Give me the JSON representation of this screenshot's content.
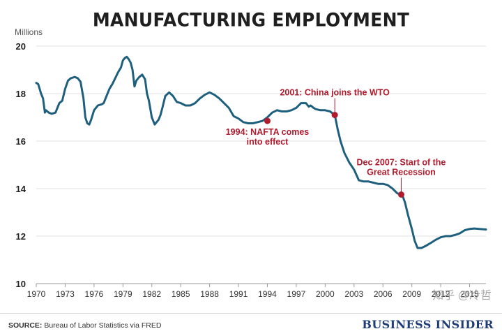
{
  "colors": {
    "line": "#1f5f7e",
    "annotation": "#b01c2e",
    "axis": "#bfbfbf"
  },
  "footer": {
    "source_label": "SOURCE:",
    "source_text": "Bureau of Labor Statistics via FRED",
    "brand": "BUSINESS INSIDER"
  },
  "watermark": "知乎 @冷哲",
  "chart_data": {
    "type": "line",
    "title": "MANUFACTURING EMPLOYMENT",
    "ylabel": "Millions",
    "xlabel": "",
    "xlim": [
      1970,
      2016.7
    ],
    "ylim": [
      10,
      20
    ],
    "yticks": [
      10,
      12,
      14,
      16,
      18,
      20
    ],
    "xticks": [
      1970,
      1973,
      1976,
      1979,
      1982,
      1985,
      1988,
      1991,
      1994,
      1997,
      2000,
      2003,
      2006,
      2009,
      2012,
      2015
    ],
    "series": [
      {
        "name": "Manufacturing employment (millions)",
        "x": [
          1970.0,
          1970.2,
          1970.5,
          1970.7,
          1970.9,
          1971.0,
          1971.3,
          1971.6,
          1972.0,
          1972.4,
          1972.7,
          1973.0,
          1973.3,
          1973.6,
          1974.0,
          1974.3,
          1974.6,
          1974.9,
          1975.1,
          1975.3,
          1975.5,
          1975.7,
          1976.0,
          1976.4,
          1976.8,
          1977.0,
          1977.3,
          1977.6,
          1977.9,
          1978.2,
          1978.5,
          1978.8,
          1979.0,
          1979.2,
          1979.4,
          1979.6,
          1979.8,
          1980.0,
          1980.2,
          1980.4,
          1980.7,
          1981.0,
          1981.3,
          1981.5,
          1981.7,
          1982.0,
          1982.3,
          1982.7,
          1982.9,
          1983.1,
          1983.4,
          1983.8,
          1984.2,
          1984.6,
          1985.0,
          1985.5,
          1986.0,
          1986.5,
          1987.0,
          1987.5,
          1988.0,
          1988.5,
          1989.0,
          1989.5,
          1990.0,
          1990.5,
          1991.0,
          1991.5,
          1992.0,
          1992.5,
          1993.0,
          1993.5,
          1994.0,
          1994.5,
          1995.0,
          1995.5,
          1996.0,
          1996.5,
          1997.0,
          1997.5,
          1998.0,
          1998.3,
          1998.5,
          1998.8,
          1999.0,
          1999.5,
          2000.0,
          2000.5,
          2001.0,
          2001.3,
          2001.6,
          2002.0,
          2002.5,
          2003.0,
          2003.5,
          2004.0,
          2004.5,
          2005.0,
          2005.5,
          2006.0,
          2006.5,
          2007.0,
          2007.5,
          2008.0,
          2008.3,
          2008.6,
          2009.0,
          2009.3,
          2009.6,
          2010.0,
          2010.5,
          2011.0,
          2011.5,
          2012.0,
          2012.5,
          2013.0,
          2013.5,
          2014.0,
          2014.5,
          2015.0,
          2015.5,
          2016.0,
          2016.7
        ],
        "values": [
          18.45,
          18.4,
          18.0,
          17.8,
          17.2,
          17.3,
          17.2,
          17.15,
          17.2,
          17.6,
          17.7,
          18.2,
          18.55,
          18.65,
          18.7,
          18.65,
          18.5,
          17.8,
          17.0,
          16.75,
          16.7,
          16.9,
          17.3,
          17.5,
          17.55,
          17.6,
          17.9,
          18.2,
          18.4,
          18.65,
          18.9,
          19.1,
          19.4,
          19.5,
          19.55,
          19.45,
          19.3,
          19.0,
          18.3,
          18.55,
          18.7,
          18.8,
          18.6,
          18.0,
          17.7,
          17.0,
          16.7,
          16.9,
          17.1,
          17.4,
          17.9,
          18.05,
          17.9,
          17.65,
          17.6,
          17.5,
          17.5,
          17.6,
          17.8,
          17.95,
          18.05,
          17.95,
          17.8,
          17.6,
          17.4,
          17.05,
          16.95,
          16.8,
          16.75,
          16.75,
          16.8,
          16.85,
          17.0,
          17.2,
          17.3,
          17.25,
          17.25,
          17.3,
          17.4,
          17.6,
          17.6,
          17.45,
          17.5,
          17.4,
          17.35,
          17.3,
          17.3,
          17.25,
          17.1,
          16.5,
          16.0,
          15.5,
          15.1,
          14.8,
          14.35,
          14.3,
          14.3,
          14.25,
          14.2,
          14.2,
          14.15,
          14.0,
          13.8,
          13.75,
          13.4,
          12.9,
          12.3,
          11.8,
          11.5,
          11.5,
          11.6,
          11.72,
          11.85,
          11.95,
          12.0,
          12.0,
          12.05,
          12.12,
          12.25,
          12.3,
          12.32,
          12.3,
          12.28
        ]
      }
    ],
    "annotations": [
      {
        "x": 1994.0,
        "y": 16.85,
        "text": [
          "1994: NAFTA comes",
          "into effect"
        ],
        "position": "below"
      },
      {
        "x": 2001.0,
        "y": 17.1,
        "text": [
          "2001: China joins the WTO"
        ],
        "position": "above"
      },
      {
        "x": 2007.9,
        "y": 13.75,
        "text": [
          "Dec 2007: Start of the",
          "Great Recession"
        ],
        "position": "above"
      }
    ]
  }
}
